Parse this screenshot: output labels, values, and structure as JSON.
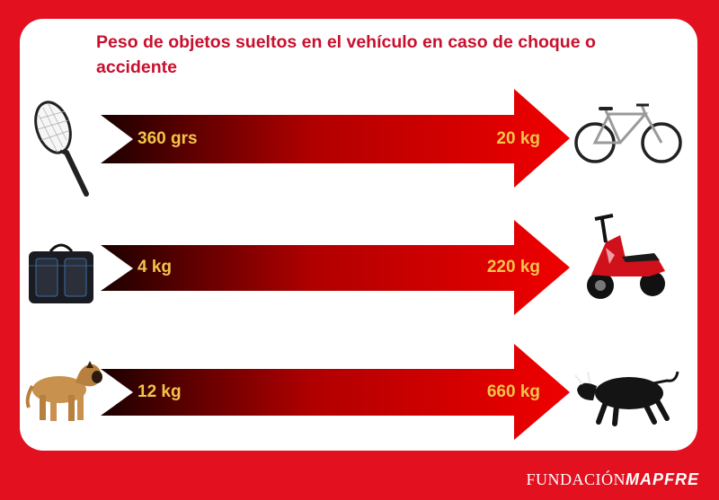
{
  "title": "Peso de objetos sueltos en el vehículo en caso de choque o accidente",
  "rows": [
    {
      "from_value": "360 grs",
      "to_value": "20 kg",
      "from_icon": "tennis-racket-icon",
      "to_icon": "bicycle-icon"
    },
    {
      "from_value": "4 kg",
      "to_value": "220 kg",
      "from_icon": "laptop-bag-icon",
      "to_icon": "scooter-icon"
    },
    {
      "from_value": "12 kg",
      "to_value": "660 kg",
      "from_icon": "dog-icon",
      "to_icon": "bull-icon"
    }
  ],
  "footer": {
    "logo_part1": "FUNDACIÓN",
    "logo_part2": "MAPFRE"
  },
  "colors": {
    "brand_red": "#e3101f",
    "title_red": "#c8102e",
    "value_gold": "#f2c44a"
  }
}
